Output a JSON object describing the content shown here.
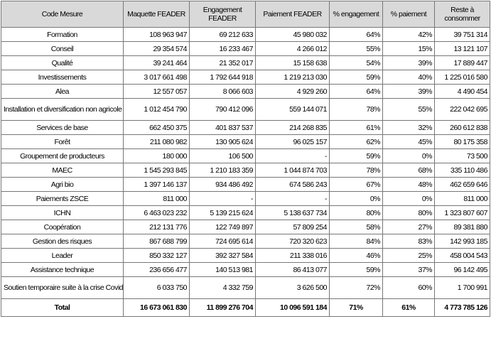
{
  "headers": [
    "Code Mesure",
    "Maquette FEADER",
    "Engagement FEADER",
    "Paiement FEADER",
    "% engagement",
    "% paiement",
    "Reste à consommer"
  ],
  "rows": [
    {
      "code": "Formation",
      "maquette": "108 963 947",
      "engagement": "69 212 633",
      "paiement": "45 980 032",
      "pct_engagement": "64%",
      "pct_paiement": "42%",
      "reste": "39 751 314"
    },
    {
      "code": "Conseil",
      "maquette": "29 354 574",
      "engagement": "16 233 467",
      "paiement": "4 266 012",
      "pct_engagement": "55%",
      "pct_paiement": "15%",
      "reste": "13 121 107"
    },
    {
      "code": "Qualité",
      "maquette": "39 241 464",
      "engagement": "21 352 017",
      "paiement": "15 158 638",
      "pct_engagement": "54%",
      "pct_paiement": "39%",
      "reste": "17 889 447"
    },
    {
      "code": "Investissements",
      "maquette": "3 017 661 498",
      "engagement": "1 792 644 918",
      "paiement": "1 219 213 030",
      "pct_engagement": "59%",
      "pct_paiement": "40%",
      "reste": "1 225 016 580"
    },
    {
      "code": "Alea",
      "maquette": "12 557 057",
      "engagement": "8 066 603",
      "paiement": "4 929 260",
      "pct_engagement": "64%",
      "pct_paiement": "39%",
      "reste": "4 490 454"
    },
    {
      "code": "Installation et diversification non agricole",
      "maquette": "1 012 454 790",
      "engagement": "790 412 096",
      "paiement": "559 144 071",
      "pct_engagement": "78%",
      "pct_paiement": "55%",
      "reste": "222 042 695"
    },
    {
      "code": "Services de base",
      "maquette": "662 450 375",
      "engagement": "401 837 537",
      "paiement": "214 268 835",
      "pct_engagement": "61%",
      "pct_paiement": "32%",
      "reste": "260 612 838"
    },
    {
      "code": "Forêt",
      "maquette": "211 080 982",
      "engagement": "130 905 624",
      "paiement": "96 025 157",
      "pct_engagement": "62%",
      "pct_paiement": "45%",
      "reste": "80 175 358"
    },
    {
      "code": "Groupement de producteurs",
      "maquette": "180 000",
      "engagement": "106 500",
      "paiement": "-",
      "pct_engagement": "59%",
      "pct_paiement": "0%",
      "reste": "73 500"
    },
    {
      "code": "MAEC",
      "maquette": "1 545 293 845",
      "engagement": "1 210 183 359",
      "paiement": "1 044 874 703",
      "pct_engagement": "78%",
      "pct_paiement": "68%",
      "reste": "335 110 486"
    },
    {
      "code": "Agri bio",
      "maquette": "1 397 146 137",
      "engagement": "934 486 492",
      "paiement": "674 586 243",
      "pct_engagement": "67%",
      "pct_paiement": "48%",
      "reste": "462 659 646"
    },
    {
      "code": "Paiements ZSCE",
      "maquette": "811 000",
      "engagement": "-",
      "paiement": "-",
      "pct_engagement": "0%",
      "pct_paiement": "0%",
      "reste": "811 000"
    },
    {
      "code": "ICHN",
      "maquette": "6 463 023 232",
      "engagement": "5 139 215 624",
      "paiement": "5 138 637 734",
      "pct_engagement": "80%",
      "pct_paiement": "80%",
      "reste": "1 323 807 607"
    },
    {
      "code": "Coopération",
      "maquette": "212 131 776",
      "engagement": "122 749 897",
      "paiement": "57 809 254",
      "pct_engagement": "58%",
      "pct_paiement": "27%",
      "reste": "89 381 880"
    },
    {
      "code": "Gestion des risques",
      "maquette": "867 688 799",
      "engagement": "724 695 614",
      "paiement": "720 320 623",
      "pct_engagement": "84%",
      "pct_paiement": "83%",
      "reste": "142 993 185"
    },
    {
      "code": "Leader",
      "maquette": "850 332 127",
      "engagement": "392 327 584",
      "paiement": "211 338 016",
      "pct_engagement": "46%",
      "pct_paiement": "25%",
      "reste": "458 004 543"
    },
    {
      "code": "Assistance technique",
      "maquette": "236 656 477",
      "engagement": "140 513 981",
      "paiement": "86 413 077",
      "pct_engagement": "59%",
      "pct_paiement": "37%",
      "reste": "96 142 495"
    },
    {
      "code": "Soutien temporaire suite à la crise Covid",
      "maquette": "6 033 750",
      "engagement": "4 332 759",
      "paiement": "3 626 500",
      "pct_engagement": "72%",
      "pct_paiement": "60%",
      "reste": "1 700 991"
    }
  ],
  "total": {
    "code": "Total",
    "maquette": "16 673 061 830",
    "engagement": "11 899 276 704",
    "paiement": "10 096 591 184",
    "pct_engagement": "71%",
    "pct_paiement": "61%",
    "reste": "4 773 785 126"
  }
}
